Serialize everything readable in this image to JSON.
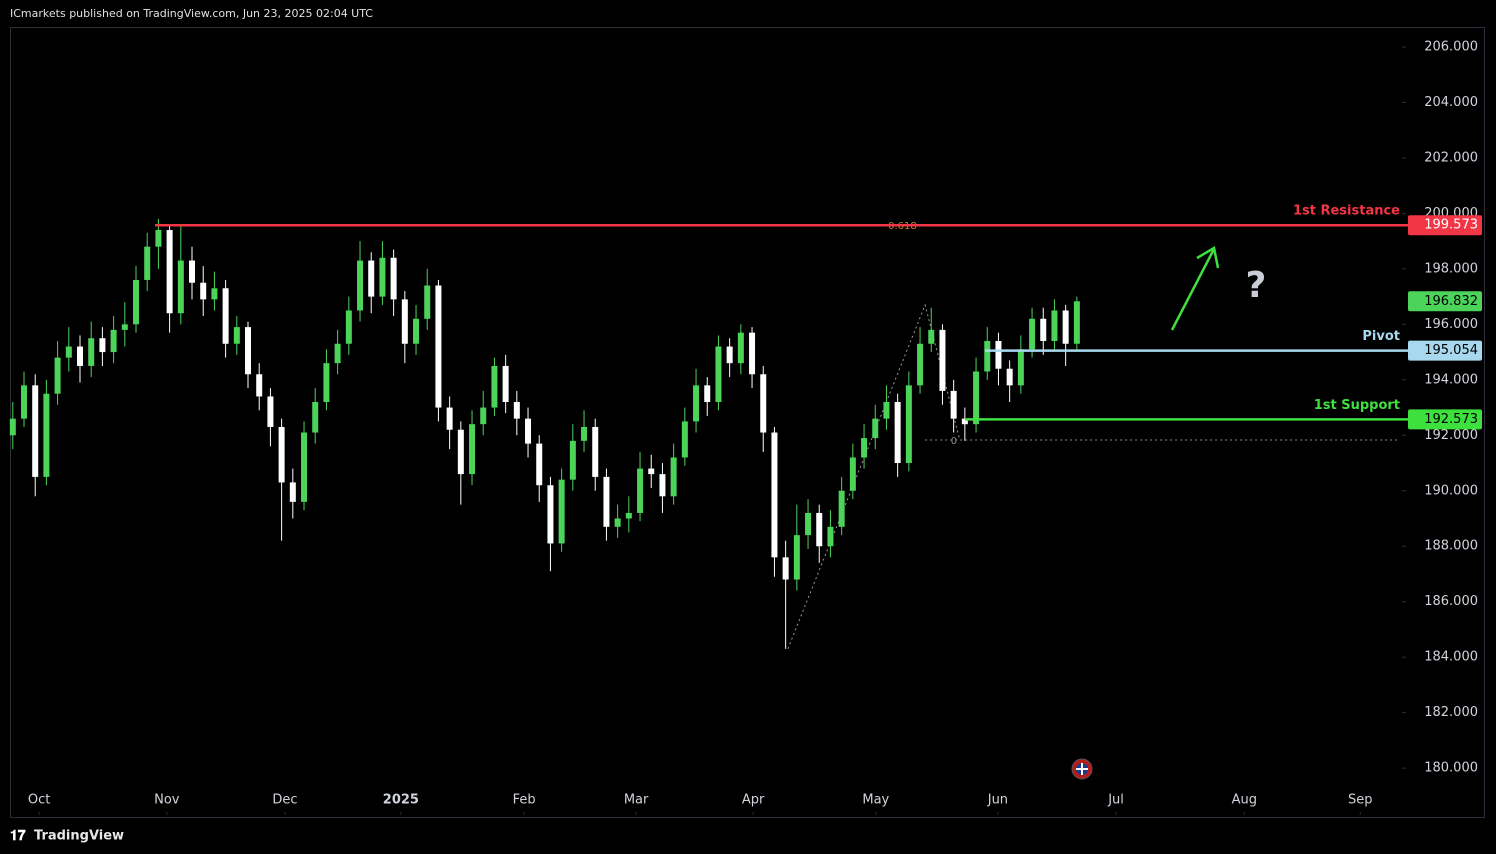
{
  "header": "ICmarkets published on TradingView.com, Jun 23, 2025 02:04 UTC",
  "footer": "TradingView",
  "chart_data": {
    "type": "candlestick",
    "up_color": "#4cd35a",
    "down_color": "#ffffff",
    "x": [
      0,
      2,
      4,
      6,
      8,
      10,
      12,
      14,
      16,
      18,
      20,
      22,
      24,
      26,
      28,
      30,
      32,
      34,
      36,
      38,
      40,
      42,
      44,
      46,
      48,
      50,
      52,
      54,
      56,
      58,
      60,
      62,
      64,
      66,
      68,
      70,
      72,
      74,
      76,
      78,
      80,
      82,
      84,
      86,
      88,
      90,
      92,
      94,
      96,
      98,
      100,
      102,
      104,
      106,
      108,
      110,
      112,
      114,
      116,
      118,
      120,
      122,
      124,
      126,
      128,
      130,
      132,
      134,
      136,
      138,
      140,
      142,
      144,
      146,
      148,
      150,
      152,
      154,
      156,
      158,
      160,
      162,
      164,
      166,
      168,
      170,
      172,
      174,
      176,
      178,
      180,
      182,
      184,
      186,
      188,
      190
    ],
    "open": [
      192.0,
      192.6,
      193.8,
      190.5,
      193.5,
      194.8,
      195.2,
      194.5,
      195.5,
      195.0,
      195.8,
      196.0,
      197.6,
      198.8,
      199.4,
      196.4,
      198.3,
      197.5,
      196.9,
      197.3,
      195.3,
      195.9,
      194.2,
      193.4,
      192.3,
      190.3,
      189.6,
      192.1,
      193.2,
      194.6,
      195.3,
      196.5,
      198.3,
      197.0,
      198.4,
      196.9,
      195.3,
      196.2,
      197.4,
      193.0,
      192.2,
      190.6,
      192.4,
      193.0,
      194.5,
      193.2,
      192.6,
      191.7,
      190.2,
      188.1,
      190.4,
      191.8,
      192.3,
      190.5,
      188.7,
      189.0,
      189.2,
      190.8,
      190.6,
      189.8,
      191.2,
      192.5,
      193.8,
      193.2,
      195.2,
      194.6,
      195.7,
      194.2,
      192.1,
      187.6,
      186.8,
      188.4,
      189.2,
      188.0,
      188.7,
      190.0,
      191.2,
      191.9,
      192.6,
      193.2,
      191.0,
      193.8,
      195.3,
      195.8,
      193.6,
      192.6,
      192.4,
      194.3,
      195.4,
      194.4,
      193.8,
      195.1,
      196.2,
      195.4,
      196.5,
      195.3
    ],
    "high": [
      193.2,
      194.3,
      194.2,
      194.0,
      195.4,
      195.9,
      195.6,
      196.1,
      195.9,
      196.3,
      196.8,
      198.1,
      199.3,
      199.8,
      199.6,
      199.6,
      198.8,
      198.1,
      197.9,
      197.6,
      196.3,
      196.1,
      194.6,
      193.7,
      192.6,
      190.8,
      192.5,
      193.7,
      195.1,
      195.8,
      197.0,
      199.0,
      198.6,
      199.0,
      198.7,
      197.2,
      196.7,
      198.0,
      197.6,
      193.4,
      192.5,
      192.9,
      193.6,
      194.8,
      194.9,
      193.6,
      193.0,
      192.0,
      190.5,
      190.8,
      192.4,
      192.9,
      192.6,
      190.8,
      189.5,
      189.8,
      191.4,
      191.3,
      191.0,
      191.7,
      193.0,
      194.4,
      194.1,
      195.6,
      195.5,
      196.0,
      195.9,
      194.5,
      192.3,
      188.2,
      189.5,
      189.7,
      189.5,
      189.3,
      190.5,
      191.7,
      192.4,
      193.1,
      193.8,
      193.5,
      194.3,
      195.9,
      196.6,
      196.0,
      194.0,
      193.0,
      194.8,
      195.9,
      195.7,
      194.7,
      195.6,
      196.6,
      196.6,
      196.9,
      196.7,
      197.0
    ],
    "low": [
      191.5,
      192.3,
      189.8,
      190.2,
      193.1,
      194.3,
      193.9,
      194.1,
      194.5,
      194.6,
      195.2,
      195.7,
      197.2,
      198.0,
      195.7,
      196.0,
      196.9,
      196.3,
      196.5,
      194.8,
      194.9,
      193.7,
      192.9,
      191.6,
      188.2,
      189.0,
      189.3,
      191.7,
      192.9,
      194.2,
      194.9,
      196.1,
      196.4,
      196.7,
      196.3,
      194.6,
      194.9,
      195.8,
      192.5,
      191.5,
      189.5,
      190.2,
      192.0,
      192.7,
      192.8,
      192.0,
      191.2,
      189.6,
      187.1,
      187.8,
      190.0,
      191.4,
      190.0,
      188.2,
      188.3,
      188.5,
      188.9,
      190.1,
      189.2,
      189.5,
      190.9,
      192.1,
      192.7,
      192.9,
      194.1,
      194.2,
      193.7,
      191.4,
      186.9,
      184.3,
      186.4,
      187.9,
      187.4,
      187.6,
      188.4,
      189.7,
      190.8,
      191.5,
      192.2,
      190.5,
      190.7,
      193.5,
      195.0,
      193.1,
      192.1,
      191.8,
      192.1,
      194.0,
      193.8,
      193.2,
      193.5,
      194.8,
      194.9,
      195.1,
      194.5,
      195.1
    ],
    "close": [
      192.6,
      193.8,
      190.5,
      193.5,
      194.8,
      195.2,
      194.5,
      195.5,
      195.0,
      195.8,
      196.0,
      197.6,
      198.8,
      199.4,
      196.4,
      198.3,
      197.5,
      196.9,
      197.3,
      195.3,
      195.9,
      194.2,
      193.4,
      192.3,
      190.3,
      189.6,
      192.1,
      193.2,
      194.6,
      195.3,
      196.5,
      198.3,
      197.0,
      198.4,
      196.9,
      195.3,
      196.2,
      197.4,
      193.0,
      192.2,
      190.6,
      192.4,
      193.0,
      194.5,
      193.2,
      192.6,
      191.7,
      190.2,
      188.1,
      190.4,
      191.8,
      192.3,
      190.5,
      188.7,
      189.0,
      189.2,
      190.8,
      190.6,
      189.8,
      191.2,
      192.5,
      193.8,
      193.2,
      195.2,
      194.6,
      195.7,
      194.2,
      192.1,
      187.6,
      186.8,
      188.4,
      189.2,
      188.0,
      188.7,
      190.0,
      191.2,
      191.9,
      192.6,
      193.2,
      191.0,
      193.8,
      195.3,
      195.8,
      193.6,
      192.6,
      192.4,
      194.3,
      195.4,
      194.4,
      193.8,
      195.1,
      196.2,
      195.4,
      196.5,
      195.3,
      196.832
    ],
    "xlim": [
      -0.5,
      247.7
    ],
    "xticks": [
      {
        "value": 4.7,
        "label": "Oct"
      },
      {
        "value": 27.5,
        "label": "Nov"
      },
      {
        "value": 48.6,
        "label": "Dec"
      },
      {
        "value": 69.3,
        "label": "2025"
      },
      {
        "value": 91.3,
        "label": "Feb"
      },
      {
        "value": 111.3,
        "label": "Mar"
      },
      {
        "value": 132.2,
        "label": "Apr"
      },
      {
        "value": 154.1,
        "label": "May"
      },
      {
        "value": 175.9,
        "label": "Jun"
      },
      {
        "value": 197.0,
        "label": "Jul"
      },
      {
        "value": 219.9,
        "label": "Aug"
      },
      {
        "value": 240.6,
        "label": "Sep"
      }
    ],
    "ylim": [
      178.31,
      206.72
    ],
    "yticks": [
      {
        "value": 180,
        "label": "180.000"
      },
      {
        "value": 182,
        "label": "182.000"
      },
      {
        "value": 184,
        "label": "184.000"
      },
      {
        "value": 186,
        "label": "186.000"
      },
      {
        "value": 188,
        "label": "188.000"
      },
      {
        "value": 190,
        "label": "190.000"
      },
      {
        "value": 192,
        "label": "192.000"
      },
      {
        "value": 194,
        "label": "194.000"
      },
      {
        "value": 196,
        "label": "196.000"
      },
      {
        "value": 198,
        "label": "198.000"
      },
      {
        "value": 200,
        "label": "200.000"
      },
      {
        "value": 202,
        "label": "202.000"
      },
      {
        "value": 204,
        "label": "204.000"
      },
      {
        "value": 206,
        "label": "206.000"
      }
    ],
    "levels": [
      {
        "name": "1st Resistance",
        "value": 199.573,
        "color": "#f23645",
        "text_color": "#ffffff",
        "start_x": 25.4
      },
      {
        "name": "Pivot",
        "value": 195.054,
        "color": "#a8d8ee",
        "text_color": "#000000",
        "start_x": 173.6
      },
      {
        "name": "1st Support",
        "value": 192.573,
        "color": "#3ee03e",
        "text_color": "#000000",
        "start_x": 170.0
      }
    ],
    "fib_levels": [
      {
        "ratio": 0.618,
        "price": 199.573,
        "start_x": 155.7,
        "color": "#c8862a"
      },
      {
        "ratio": 0,
        "price": 191.83,
        "start_x": 162.9,
        "color": "#8a8a8a"
      }
    ],
    "fib_points": {
      "x": [
        138.4,
        162.9,
        169.1
      ],
      "y": [
        184.3,
        196.7,
        191.83
      ]
    }
  }
}
